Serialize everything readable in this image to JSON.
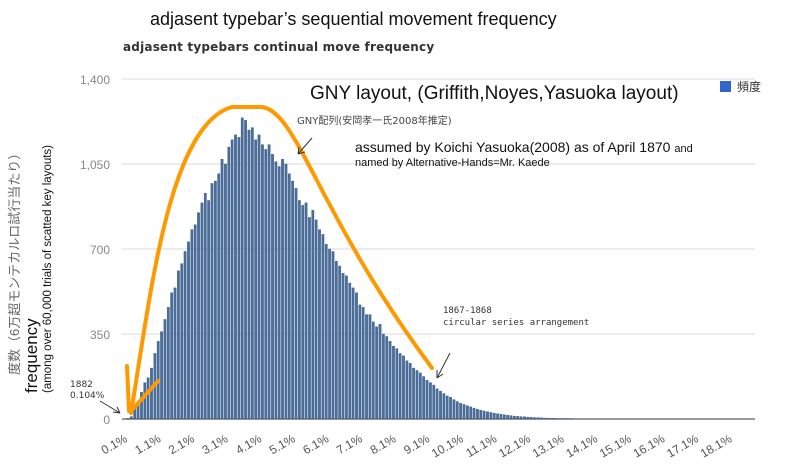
{
  "annotations": {
    "top_title": "adjasent typebar’s sequential movement frequency",
    "gny_title": "GNY layout, (Griffith,Noyes,Yasuoka layout)",
    "jp_note": "GNY配列(安岡孝一氏2008年推定)",
    "assumed": "assumed by Koichi Yasuoka(2008) as of April 1870",
    "assumed_and": "and",
    "named": "named by Alternative-Hands=Mr. Kaede",
    "circular_year": "1867-1868",
    "circular_label": "circular series arrangement",
    "n1882_year": "1882",
    "n1882_value": "0.104%",
    "ylabel_jp": "度数（6万超モンテカルロ試行当たり）",
    "ylabel_en": "frequency",
    "ylabel_sub": "(among over 60,000 trials of scatted key layouts)"
  },
  "colors": {
    "bar": "#4a6e9b",
    "bar_edge": "#2f4f7a",
    "legend": "#3366cc",
    "highlight": "#ff9900"
  },
  "chart_data": {
    "type": "bar",
    "title": "adjasent typebars continual move frequency",
    "xlabel": "",
    "ylabel": "度数",
    "ylim": [
      0,
      1400
    ],
    "yticks": [
      0,
      350,
      700,
      1050,
      1400
    ],
    "ytick_labels": [
      "0",
      "350",
      "700",
      "1,050",
      "1,400"
    ],
    "xlim": [
      0.1,
      18.1
    ],
    "xtick_labels": [
      "0.1%",
      "1.1%",
      "2.1%",
      "3.1%",
      "4.1%",
      "5.1%",
      "6.1%",
      "7.1%",
      "8.1%",
      "9.1%",
      "10.1%",
      "11.1%",
      "12.1%",
      "13.1%",
      "14.1%",
      "15.1%",
      "16.1%",
      "17.1%",
      "18.1%"
    ],
    "xtick_values": [
      0.1,
      1.1,
      2.1,
      3.1,
      4.1,
      5.1,
      6.1,
      7.1,
      8.1,
      9.1,
      10.1,
      11.1,
      12.1,
      13.1,
      14.1,
      15.1,
      16.1,
      17.1,
      18.1
    ],
    "grid": true,
    "legend": {
      "position": "top-right",
      "entries": [
        "頻度"
      ]
    },
    "x_start": 0.1,
    "x_step": 0.1,
    "series": [
      {
        "name": "頻度",
        "values": [
          3,
          10,
          50,
          60,
          110,
          150,
          170,
          210,
          270,
          320,
          360,
          410,
          460,
          520,
          540,
          610,
          640,
          690,
          730,
          780,
          800,
          850,
          890,
          930,
          900,
          970,
          980,
          1010,
          1070,
          1050,
          1120,
          1150,
          1170,
          1160,
          1240,
          1230,
          1190,
          1200,
          1150,
          1170,
          1130,
          1110,
          1130,
          1090,
          1060,
          1040,
          1070,
          1050,
          1010,
          980,
          950,
          900,
          880,
          890,
          830,
          860,
          820,
          780,
          760,
          720,
          700,
          690,
          650,
          630,
          600,
          590,
          560,
          540,
          520,
          470,
          460,
          430,
          430,
          400,
          380,
          390,
          350,
          340,
          320,
          300,
          290,
          270,
          260,
          240,
          230,
          210,
          200,
          190,
          175,
          160,
          150,
          140,
          125,
          115,
          105,
          95,
          90,
          80,
          72,
          65,
          60,
          55,
          50,
          45,
          40,
          36,
          33,
          30,
          27,
          24,
          22,
          20,
          18,
          16,
          14,
          12,
          11,
          10,
          9,
          8,
          7,
          6,
          6,
          5,
          4,
          4,
          3,
          3,
          2,
          2,
          2,
          1,
          1
        ]
      }
    ]
  }
}
